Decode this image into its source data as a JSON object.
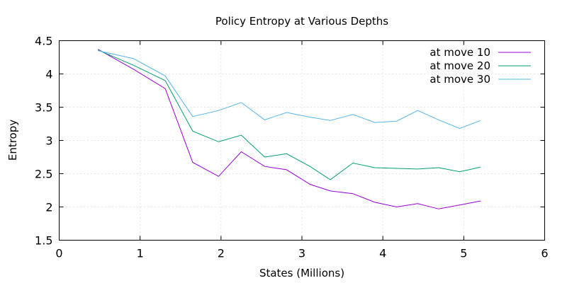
{
  "chart_data": {
    "type": "line",
    "title": "Policy Entropy at Various Depths",
    "xlabel": "States (Millions)",
    "ylabel": "Entropy",
    "xlim": [
      0,
      6
    ],
    "ylim": [
      1.5,
      4.5
    ],
    "xticks": [
      0,
      1,
      2,
      3,
      4,
      5,
      6
    ],
    "yticks": [
      1.5,
      2,
      2.5,
      3,
      3.5,
      4,
      4.5
    ],
    "xtick_labels": [
      "0",
      "1",
      "2",
      "3",
      "4",
      "5",
      "6"
    ],
    "ytick_labels": [
      "1.5",
      "2",
      "2.5",
      "3",
      "3.5",
      "4",
      "4.5"
    ],
    "grid": true,
    "legend_position": "top-right",
    "series": [
      {
        "name": "at move 10",
        "color": "#9400d3",
        "x": [
          0.48,
          0.92,
          1.31,
          1.65,
          1.97,
          2.25,
          2.54,
          2.81,
          3.1,
          3.35,
          3.63,
          3.9,
          4.17,
          4.43,
          4.69,
          4.95,
          5.21
        ],
        "y": [
          4.37,
          4.07,
          3.78,
          2.67,
          2.46,
          2.83,
          2.61,
          2.56,
          2.34,
          2.24,
          2.2,
          2.07,
          2.0,
          2.05,
          1.97,
          2.03,
          2.09
        ]
      },
      {
        "name": "at move 20",
        "color": "#009e73",
        "x": [
          0.48,
          0.92,
          1.31,
          1.65,
          1.97,
          2.25,
          2.54,
          2.81,
          3.1,
          3.35,
          3.63,
          3.9,
          4.17,
          4.43,
          4.69,
          4.95,
          5.21
        ],
        "y": [
          4.36,
          4.13,
          3.9,
          3.14,
          2.98,
          3.08,
          2.75,
          2.8,
          2.61,
          2.41,
          2.66,
          2.59,
          2.58,
          2.57,
          2.59,
          2.53,
          2.6
        ]
      },
      {
        "name": "at move 30",
        "color": "#56b4e9",
        "x": [
          0.48,
          0.92,
          1.31,
          1.65,
          1.97,
          2.25,
          2.54,
          2.81,
          3.1,
          3.35,
          3.63,
          3.9,
          4.17,
          4.43,
          4.69,
          4.95,
          5.21
        ],
        "y": [
          4.35,
          4.23,
          3.97,
          3.36,
          3.45,
          3.57,
          3.31,
          3.42,
          3.35,
          3.3,
          3.39,
          3.27,
          3.29,
          3.45,
          3.31,
          3.18,
          3.3
        ]
      }
    ]
  }
}
